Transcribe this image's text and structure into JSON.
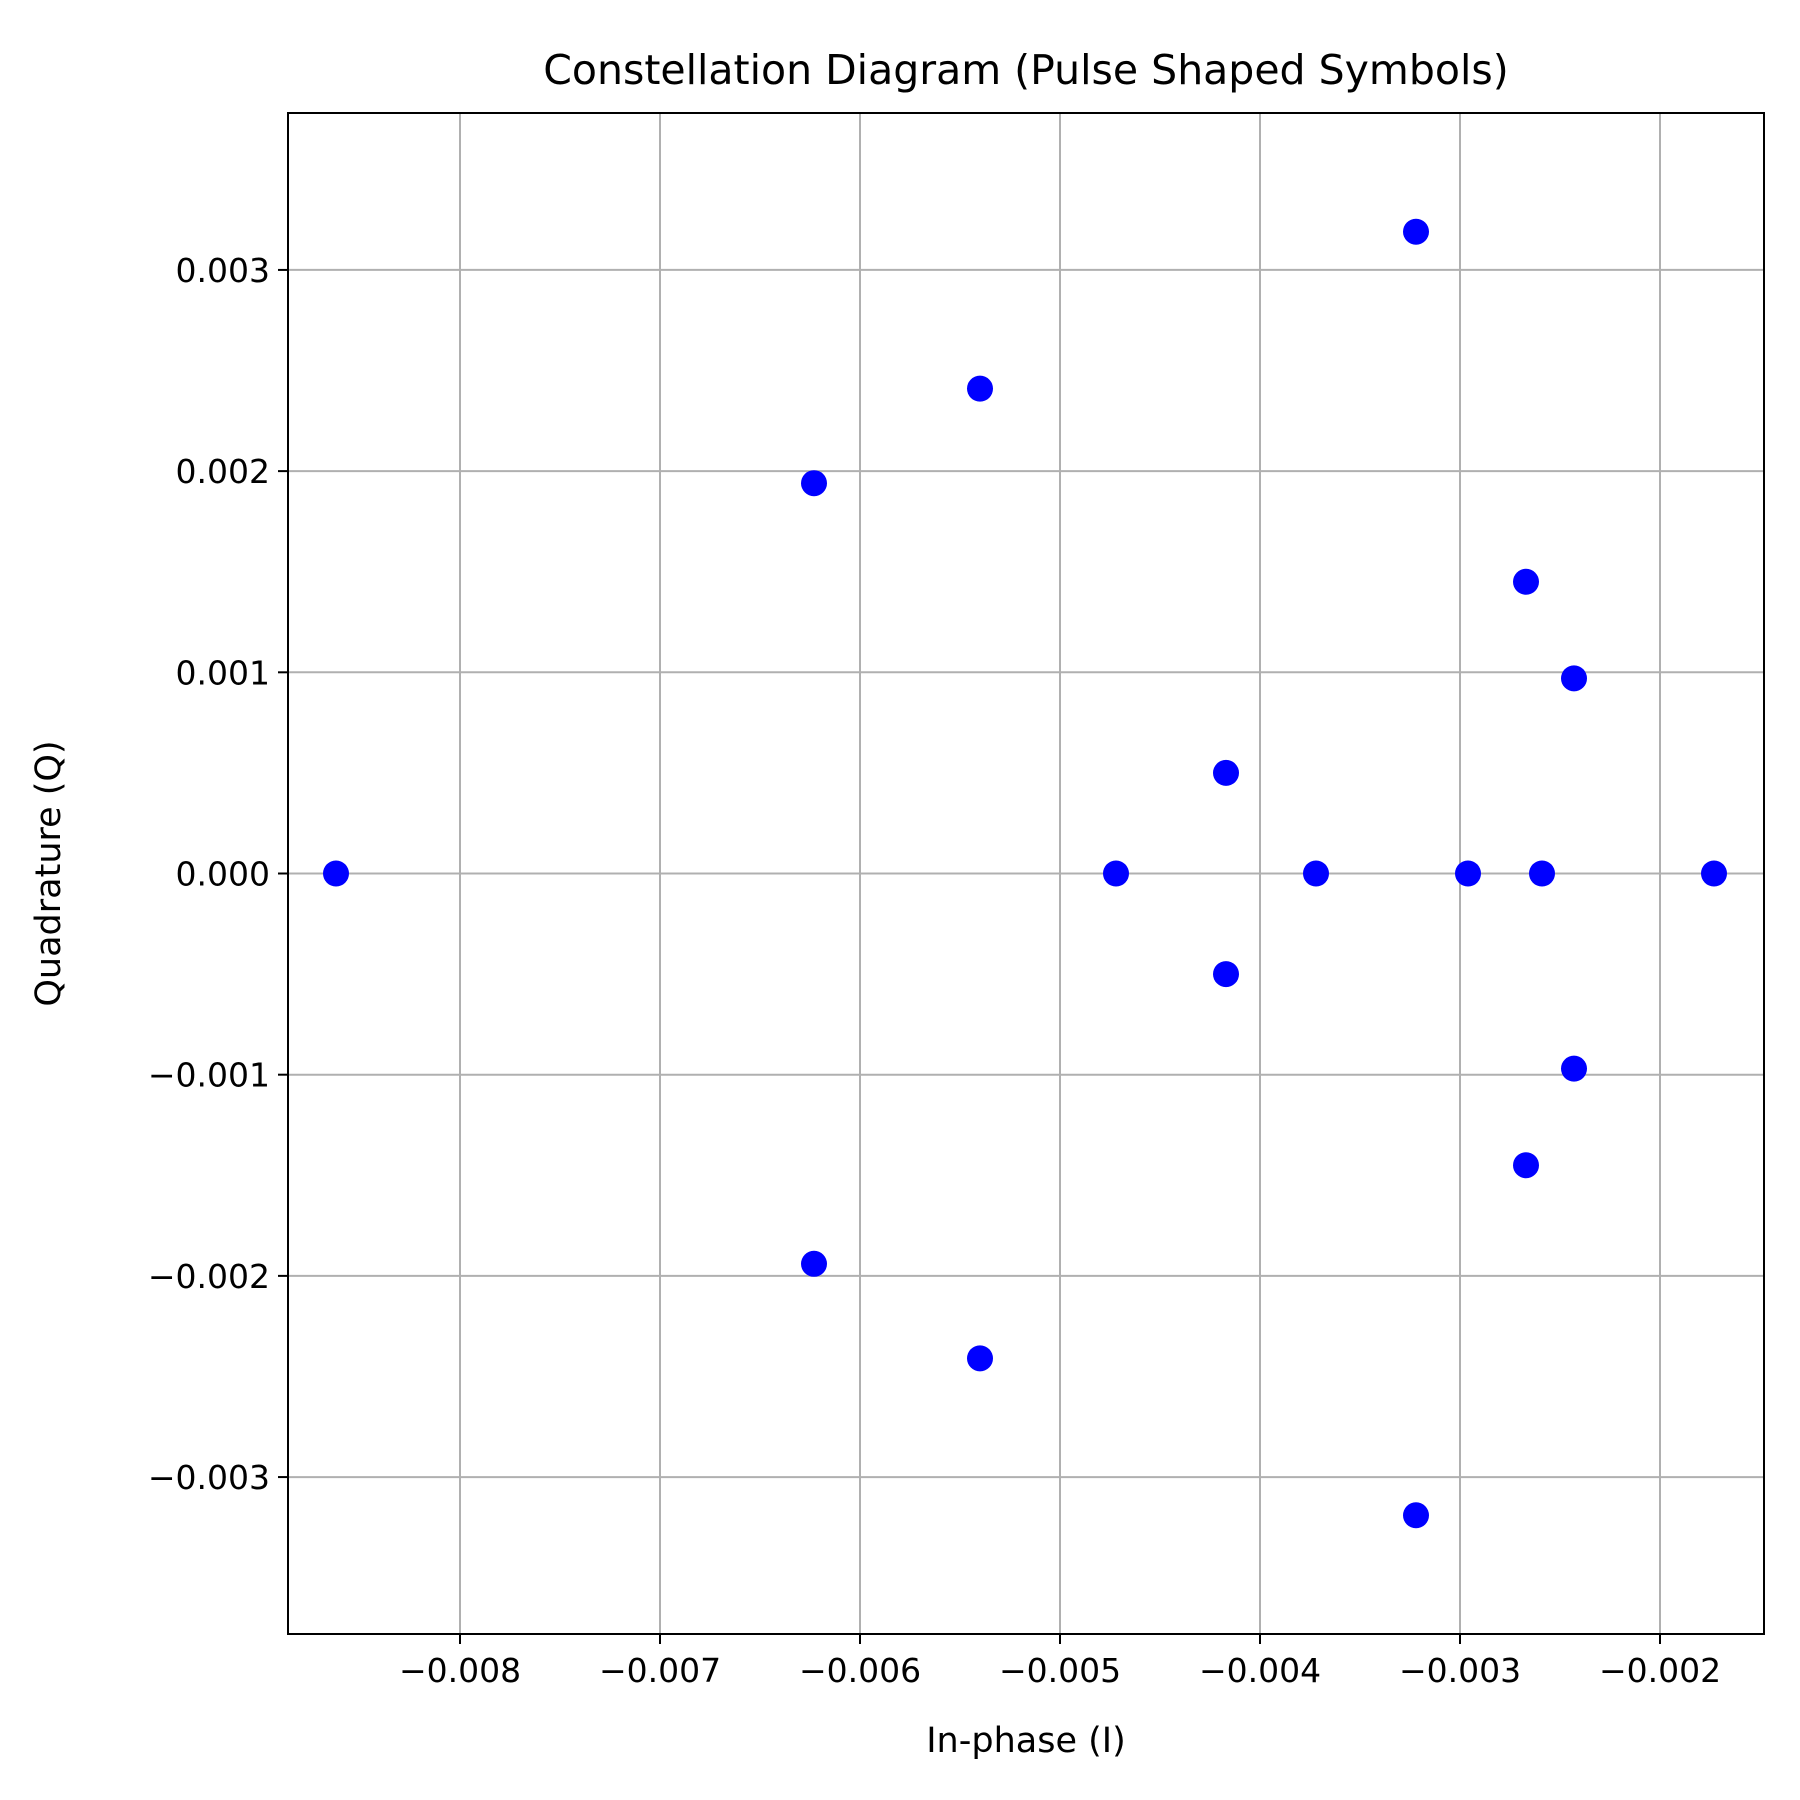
{
  "chart_data": {
    "type": "scatter",
    "title": "Constellation Diagram (Pulse Shaped Symbols)",
    "xlabel": "In-phase (I)",
    "ylabel": "Quadrature (Q)",
    "xlim": [
      -0.00886,
      -0.00148
    ],
    "ylim": [
      -0.00378,
      0.00378
    ],
    "xticks": [
      -0.008,
      -0.007,
      -0.006,
      -0.005,
      -0.004,
      -0.003,
      -0.002
    ],
    "xtick_labels": [
      "−0.008",
      "−0.007",
      "−0.006",
      "−0.005",
      "−0.004",
      "−0.003",
      "−0.002"
    ],
    "yticks": [
      -0.003,
      -0.002,
      -0.001,
      0.0,
      0.001,
      0.002,
      0.003
    ],
    "ytick_labels": [
      "−0.003",
      "−0.002",
      "−0.001",
      "0.000",
      "0.001",
      "0.002",
      "0.003"
    ],
    "grid": true,
    "marker_color": "#0000ff",
    "series": [
      {
        "x": [
          -0.00862,
          -0.00623,
          -0.00623,
          -0.0054,
          -0.0054,
          -0.00472,
          -0.00417,
          -0.00417,
          -0.00372,
          -0.00322,
          -0.00322,
          -0.00296,
          -0.00267,
          -0.00267,
          -0.00259,
          -0.00243,
          -0.00243,
          -0.00173
        ],
        "y": [
          0.0,
          0.00194,
          -0.00194,
          0.00241,
          -0.00241,
          0.0,
          0.0005,
          -0.0005,
          0.0,
          0.00319,
          -0.00319,
          0.0,
          0.00145,
          -0.00145,
          0.0,
          0.00097,
          -0.00097,
          0.0
        ]
      }
    ]
  }
}
